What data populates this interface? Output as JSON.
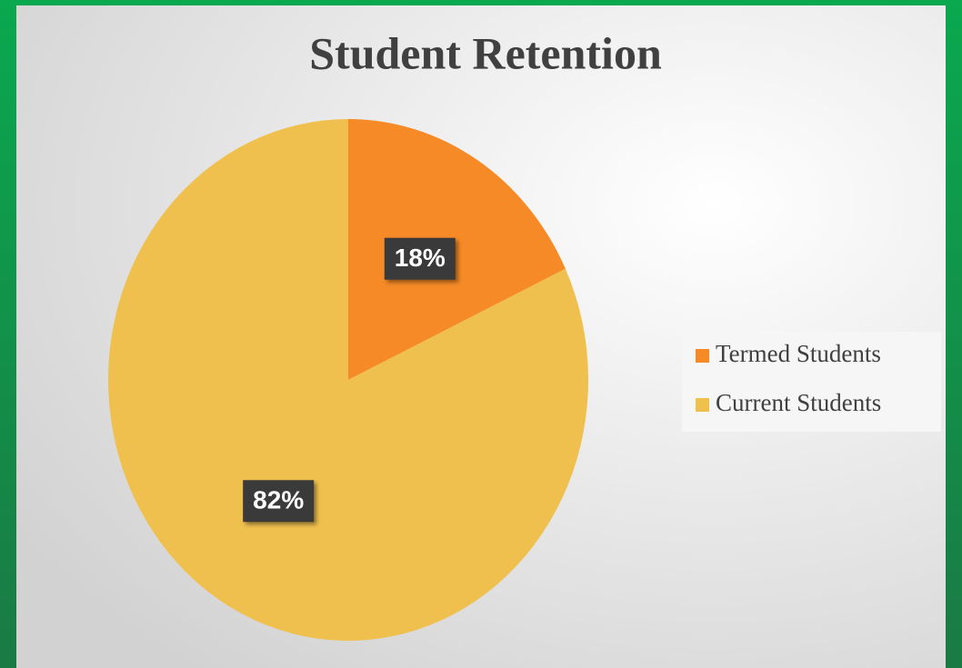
{
  "chart_data": {
    "type": "pie",
    "title": "Student Retention",
    "categories": [
      "Termed Students",
      "Current Students"
    ],
    "values": [
      18,
      82
    ],
    "value_labels": [
      "18%",
      "82%"
    ],
    "colors": [
      "#f58a26",
      "#f0c04e"
    ],
    "legend": "right"
  }
}
